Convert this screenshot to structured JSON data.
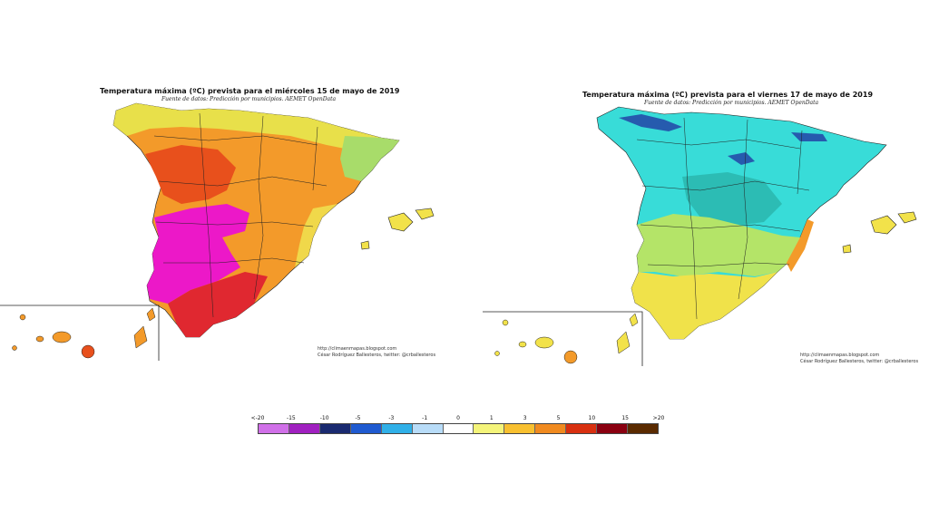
{
  "left_map": {
    "title": "Temperatura máxima (ºC) prevista para el miércoles 15 de mayo de 2019",
    "subtitle": "Fuente de datos: Predicción por municipios. AEMET OpenData",
    "credit_line1": "http://climaenmapas.blogspot.com",
    "credit_line2": "César Rodríguez Ballesteros, twitter: @crballesteros"
  },
  "right_map": {
    "title": "Temperatura máxima (ºC) prevista para el viernes 17 de mayo de 2019",
    "subtitle": "Fuente de datos: Predicción por municipios. AEMET OpenData",
    "credit_line1": "http://climaenmapas.blogspot.com",
    "credit_line2": "César Rodríguez Ballesteros, twitter: @crballesteros"
  },
  "legend": {
    "labels": [
      "<-20",
      "-15",
      "-10",
      "-5",
      "-3",
      "-1",
      "0",
      "1",
      "3",
      "5",
      "10",
      "15",
      ">20"
    ],
    "colors": [
      "#d070e8",
      "#a020c0",
      "#1a2a70",
      "#1f5ad0",
      "#30b0e8",
      "#b8dcf8",
      "#ffffff",
      "#f4f47a",
      "#f8c030",
      "#f08a20",
      "#d83010",
      "#8a0010",
      "#5a2a00"
    ]
  },
  "palette": {
    "yellow": "#f2e24a",
    "orange": "#f39a2a",
    "deep_orange": "#e8601c",
    "red": "#e02018",
    "magenta": "#ec10c8",
    "green_yellow": "#b8e860",
    "cyan": "#38dcd8",
    "teal": "#2cbcb4",
    "navy": "#2030a0"
  }
}
